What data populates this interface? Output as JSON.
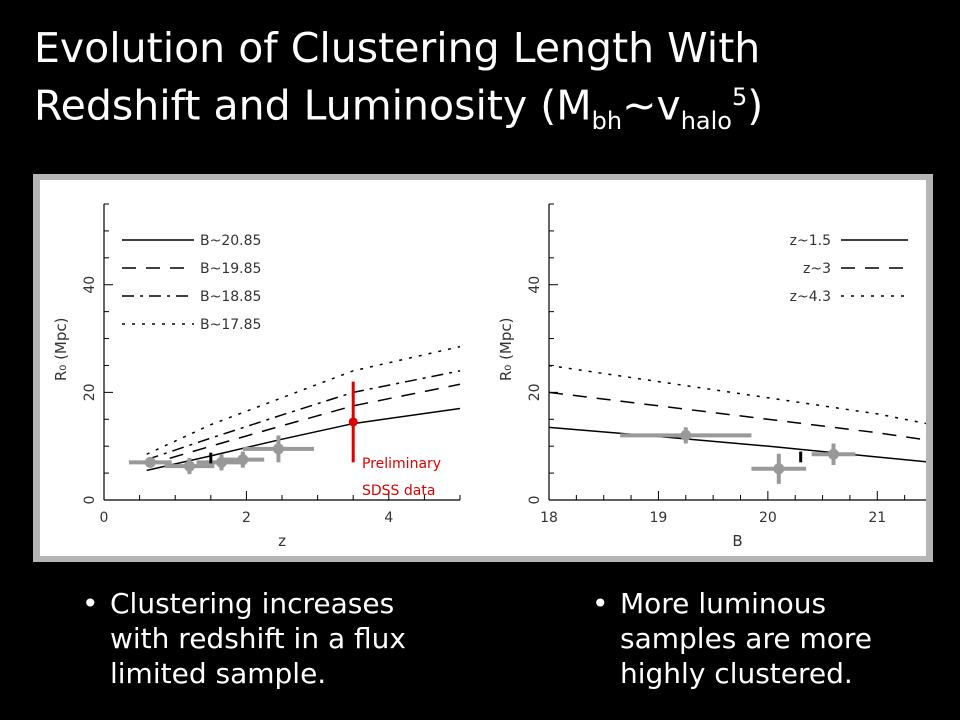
{
  "slide": {
    "title_line1": "Evolution of Clustering Length With",
    "title_line2_main": "Redshift and Luminosity (M",
    "title_sub1": "bh",
    "title_tilde": "~v",
    "title_sub2": "halo",
    "title_sup": "5",
    "title_close": ")"
  },
  "bullets": {
    "left": "Clustering increases with redshift in a flux limited sample.",
    "right": "More luminous samples are more highly clustered."
  },
  "chart_data": [
    {
      "type": "line",
      "xlabel": "z",
      "ylabel": "R₀ (Mpc)",
      "xlim": [
        0,
        5
      ],
      "ylim": [
        0,
        55
      ],
      "xticks": [
        0,
        2,
        4
      ],
      "yticks": [
        0,
        20,
        40
      ],
      "legend_position": "top-left",
      "series": [
        {
          "name": "B~20.85",
          "dash": "solid",
          "x": [
            0.6,
            1.5,
            2.5,
            3.5,
            5.0
          ],
          "y": [
            5.5,
            8.2,
            11.3,
            14.2,
            17.0
          ]
        },
        {
          "name": "B~19.85",
          "dash": "dash",
          "x": [
            0.6,
            1.5,
            2.5,
            3.5,
            5.0
          ],
          "y": [
            6.5,
            10.0,
            13.8,
            17.5,
            21.5
          ]
        },
        {
          "name": "B~18.85",
          "dash": "dashdot",
          "x": [
            0.6,
            1.5,
            2.5,
            3.5,
            5.0
          ],
          "y": [
            7.5,
            11.5,
            15.8,
            20.0,
            24.0
          ]
        },
        {
          "name": "B~17.85",
          "dash": "dot",
          "x": [
            0.6,
            1.5,
            2.5,
            3.5,
            5.0
          ],
          "y": [
            8.5,
            14.0,
            19.0,
            24.0,
            28.5
          ]
        }
      ],
      "points": [
        {
          "x": 1.2,
          "y": 6.3,
          "xerr": 0.35,
          "yerr": 1.5,
          "color": "#999999"
        },
        {
          "x": 1.65,
          "y": 7.0,
          "xerr": 0.35,
          "yerr": 1.5,
          "color": "#999999"
        },
        {
          "x": 1.95,
          "y": 7.5,
          "xerr": 0.3,
          "yerr": 1.5,
          "color": "#999999"
        },
        {
          "x": 2.45,
          "y": 9.5,
          "xerr": 0.5,
          "yerr": 2.5,
          "color": "#999999"
        },
        {
          "x": 0.65,
          "y": 7.0,
          "xerr": 0.3,
          "yerr": 0,
          "color": "#999999"
        },
        {
          "x": 1.5,
          "y": 7.8,
          "xerr": 0,
          "yerr": 1.0,
          "color": "#000000"
        },
        {
          "x": 3.5,
          "y": 14.5,
          "xerr": 0,
          "yerr": 7.5,
          "color": "#e00000"
        }
      ],
      "annotation_line1": "Preliminary",
      "annotation_line2": "SDSS data"
    },
    {
      "type": "line",
      "xlabel": "B",
      "ylabel": "R₀ (Mpc)",
      "xlim": [
        18,
        21.5
      ],
      "ylim": [
        0,
        55
      ],
      "xticks": [
        18,
        19,
        20,
        21
      ],
      "yticks": [
        0,
        20,
        40
      ],
      "legend_position": "top-right",
      "series": [
        {
          "name": "z~1.5",
          "dash": "solid",
          "x": [
            18,
            19,
            20,
            21,
            21.5
          ],
          "y": [
            13.5,
            11.8,
            10.0,
            8.0,
            7.0
          ]
        },
        {
          "name": "z~3",
          "dash": "dash",
          "x": [
            18,
            19,
            20,
            21,
            21.5
          ],
          "y": [
            20.0,
            17.5,
            15.0,
            12.5,
            11.0
          ]
        },
        {
          "name": "z~4.3",
          "dash": "dot",
          "x": [
            18,
            19,
            20,
            21,
            21.5
          ],
          "y": [
            25.0,
            22.0,
            19.0,
            16.0,
            14.0
          ]
        }
      ],
      "points": [
        {
          "x": 19.25,
          "y": 12.0,
          "xerr": 0.6,
          "yerr": 1.5,
          "color": "#999999"
        },
        {
          "x": 20.1,
          "y": 5.8,
          "xerr": 0.25,
          "yerr": 2.8,
          "color": "#999999"
        },
        {
          "x": 20.6,
          "y": 8.5,
          "xerr": 0.2,
          "yerr": 2.0,
          "color": "#999999"
        },
        {
          "x": 20.3,
          "y": 8.0,
          "xerr": 0,
          "yerr": 1.0,
          "color": "#000000"
        }
      ]
    }
  ]
}
